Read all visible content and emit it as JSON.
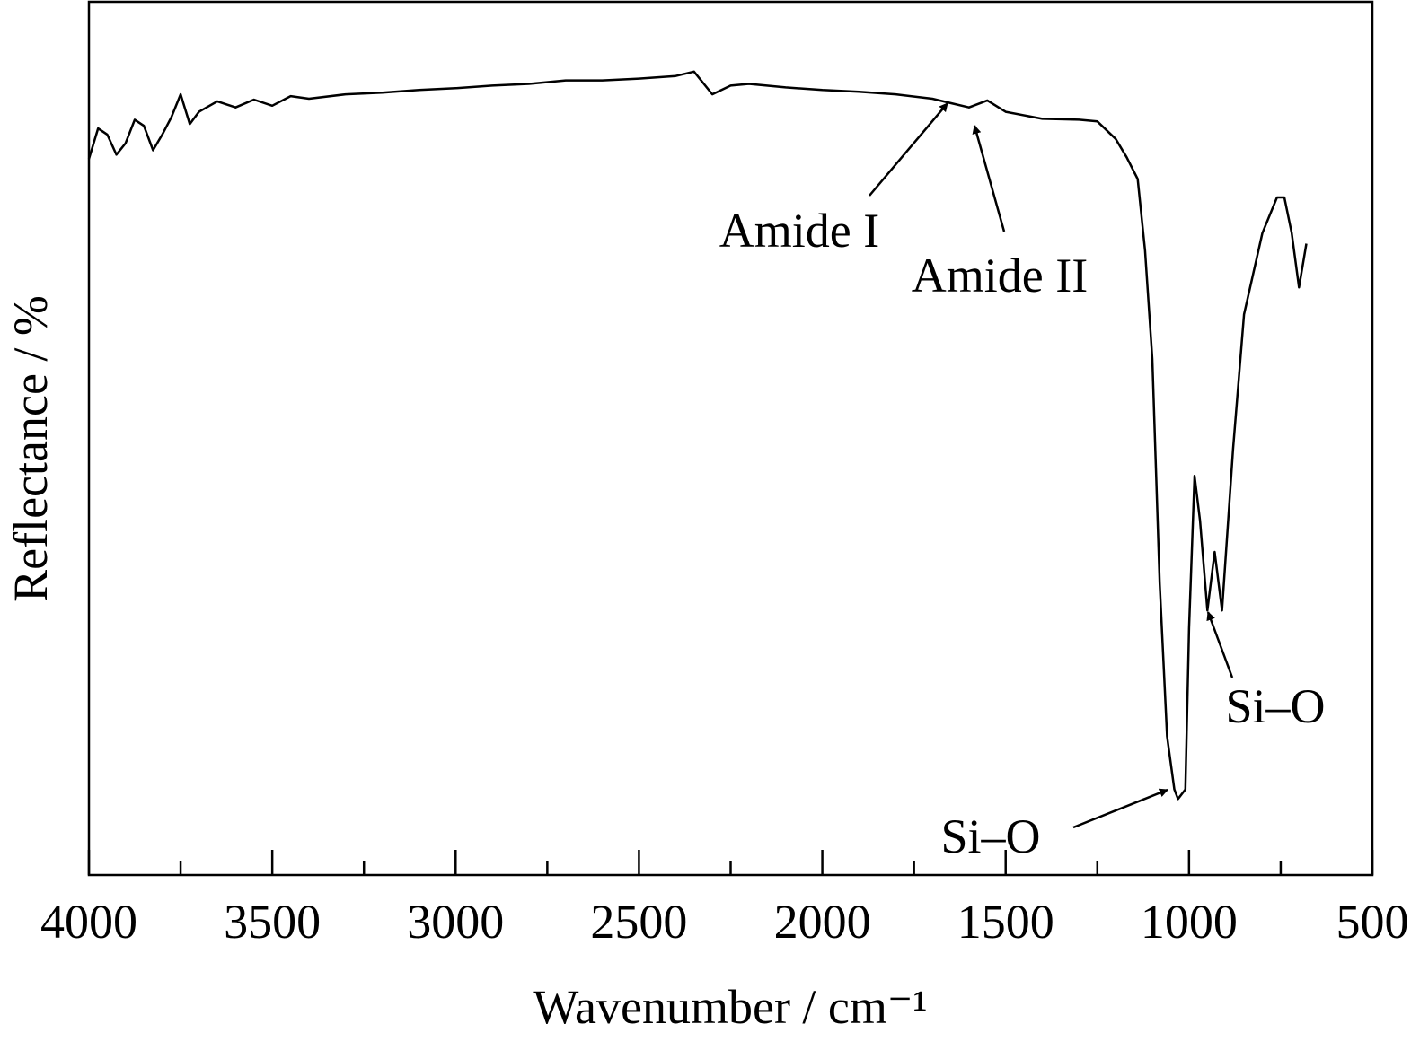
{
  "chart_data": {
    "type": "line",
    "x_label": "Wavenumber / cm⁻¹",
    "y_label": "Reflectance / %",
    "xlim": [
      4000,
      500
    ],
    "ylim": [
      0,
      100
    ],
    "xticks": [
      4000,
      3500,
      3000,
      2500,
      2000,
      1500,
      1000,
      500
    ],
    "xminorticks": [
      3750,
      3250,
      2750,
      2250,
      1750,
      1250,
      750
    ],
    "color": "#000000",
    "x": [
      4000,
      3975,
      3950,
      3925,
      3900,
      3875,
      3850,
      3825,
      3800,
      3775,
      3750,
      3725,
      3700,
      3650,
      3600,
      3550,
      3500,
      3450,
      3400,
      3300,
      3200,
      3100,
      3000,
      2900,
      2800,
      2700,
      2600,
      2500,
      2400,
      2350,
      2300,
      2250,
      2200,
      2100,
      2000,
      1900,
      1800,
      1700,
      1650,
      1600,
      1550,
      1500,
      1400,
      1300,
      1250,
      1200,
      1170,
      1140,
      1120,
      1100,
      1080,
      1060,
      1040,
      1030,
      1010,
      1000,
      985,
      970,
      950,
      930,
      910,
      880,
      850,
      800,
      760,
      740,
      720,
      700,
      680
    ],
    "values": [
      82.0,
      85.5,
      84.8,
      82.5,
      83.8,
      86.5,
      85.8,
      83.0,
      84.8,
      86.8,
      89.4,
      86.0,
      87.4,
      88.6,
      87.9,
      88.8,
      88.1,
      89.2,
      88.9,
      89.4,
      89.6,
      89.9,
      90.1,
      90.4,
      90.6,
      91.0,
      91.0,
      91.2,
      91.5,
      92.0,
      89.4,
      90.4,
      90.6,
      90.2,
      89.9,
      89.7,
      89.4,
      88.9,
      88.4,
      87.9,
      88.7,
      87.4,
      86.6,
      86.5,
      86.3,
      84.3,
      82.2,
      79.7,
      71.5,
      59.1,
      33.4,
      15.9,
      9.8,
      8.7,
      9.8,
      28.3,
      45.7,
      40.6,
      30.3,
      37.0,
      30.3,
      48.8,
      64.2,
      73.5,
      77.6,
      77.6,
      73.5,
      67.3,
      72.3
    ],
    "annotations": [
      "Amide I",
      "Amide II",
      "Si–O",
      "Si–O"
    ]
  }
}
